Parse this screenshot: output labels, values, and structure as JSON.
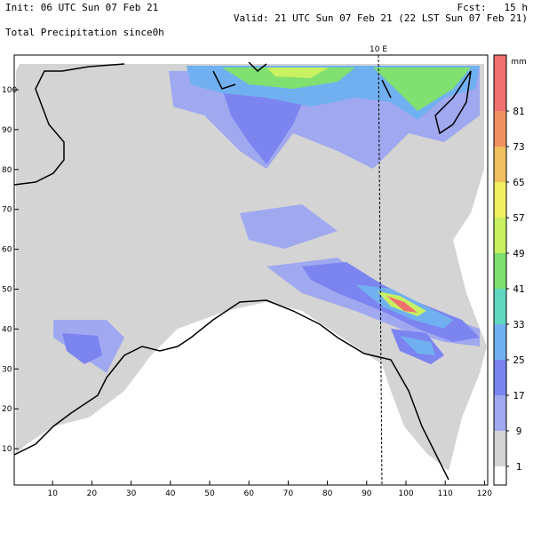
{
  "header": {
    "init": "Init: 06 UTC Sun 07 Feb 21",
    "fcst": "Fcst:   15 h",
    "valid": "Valid: 21 UTC Sun 07 Feb 21 (22 LST Sun 07 Feb 21)",
    "field": "Total Precipitation since0h"
  },
  "meridian_label": "10 E",
  "x_ticks": [
    10,
    20,
    30,
    40,
    50,
    60,
    70,
    80,
    90,
    100,
    110,
    120
  ],
  "y_ticks": [
    10,
    20,
    30,
    40,
    50,
    60,
    70,
    80,
    90,
    100
  ],
  "colorbar": {
    "unit": "mm",
    "levels": [
      1,
      9,
      17,
      25,
      33,
      41,
      49,
      57,
      65,
      73,
      81
    ],
    "colors": [
      "#ffffff",
      "#d4d4d4",
      "#a0a8f0",
      "#7c84f0",
      "#70b0f0",
      "#60d8c0",
      "#80e070",
      "#c8f060",
      "#f0f060",
      "#f0c060",
      "#f09060",
      "#f07070"
    ]
  }
}
